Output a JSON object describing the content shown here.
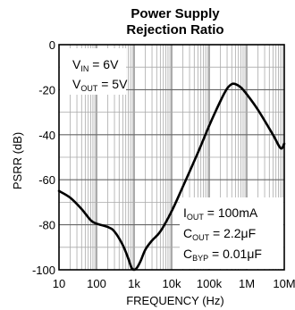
{
  "chart_data": {
    "type": "line",
    "title_line1": "Power Supply",
    "title_line2": "Rejection Ratio",
    "xlabel": "FREQUENCY (Hz)",
    "ylabel": "PSRR (dB)",
    "x_scale": "log",
    "xlim": [
      10,
      10000000
    ],
    "ylim": [
      -100,
      0
    ],
    "x_ticks": [
      {
        "value": 10,
        "label": "10"
      },
      {
        "value": 100,
        "label": "100"
      },
      {
        "value": 1000,
        "label": "1k"
      },
      {
        "value": 10000,
        "label": "10k"
      },
      {
        "value": 100000,
        "label": "100k"
      },
      {
        "value": 1000000,
        "label": "1M"
      },
      {
        "value": 10000000,
        "label": "10M"
      }
    ],
    "y_ticks": [
      {
        "value": 0,
        "label": "0"
      },
      {
        "value": -20,
        "label": "-20"
      },
      {
        "value": -40,
        "label": "-40"
      },
      {
        "value": -60,
        "label": "-60"
      },
      {
        "value": -80,
        "label": "-80"
      },
      {
        "value": -100,
        "label": "-100"
      }
    ],
    "grid": true,
    "annotations_top_left": [
      {
        "main": "V",
        "sub": "IN",
        "rest": " = 6V"
      },
      {
        "main": "V",
        "sub": "OUT",
        "rest": " = 5V"
      }
    ],
    "annotations_bottom_right": [
      {
        "main": "I",
        "sub": "OUT",
        "rest": " = 100mA"
      },
      {
        "main": "C",
        "sub": "OUT",
        "rest": " = 2.2μF"
      },
      {
        "main": "C",
        "sub": "BYP",
        "rest": " = 0.01μF"
      }
    ],
    "series": [
      {
        "x": [
          10,
          20,
          40,
          70,
          100,
          200,
          300,
          500,
          700,
          850,
          1000,
          1200,
          1500,
          2000,
          3000,
          5000,
          10000,
          20000,
          50000,
          100000,
          200000,
          300000,
          400000,
          500000,
          700000,
          1000000,
          2000000,
          5000000,
          8000000,
          10000000
        ],
        "y": [
          -65,
          -68,
          -73,
          -78,
          -79.5,
          -81,
          -83,
          -89,
          -95,
          -99,
          -100,
          -99,
          -96,
          -91,
          -87,
          -83,
          -74,
          -63,
          -48,
          -36,
          -25,
          -19.5,
          -17.5,
          -17.5,
          -19,
          -22,
          -29,
          -40,
          -46,
          -44
        ]
      }
    ]
  }
}
